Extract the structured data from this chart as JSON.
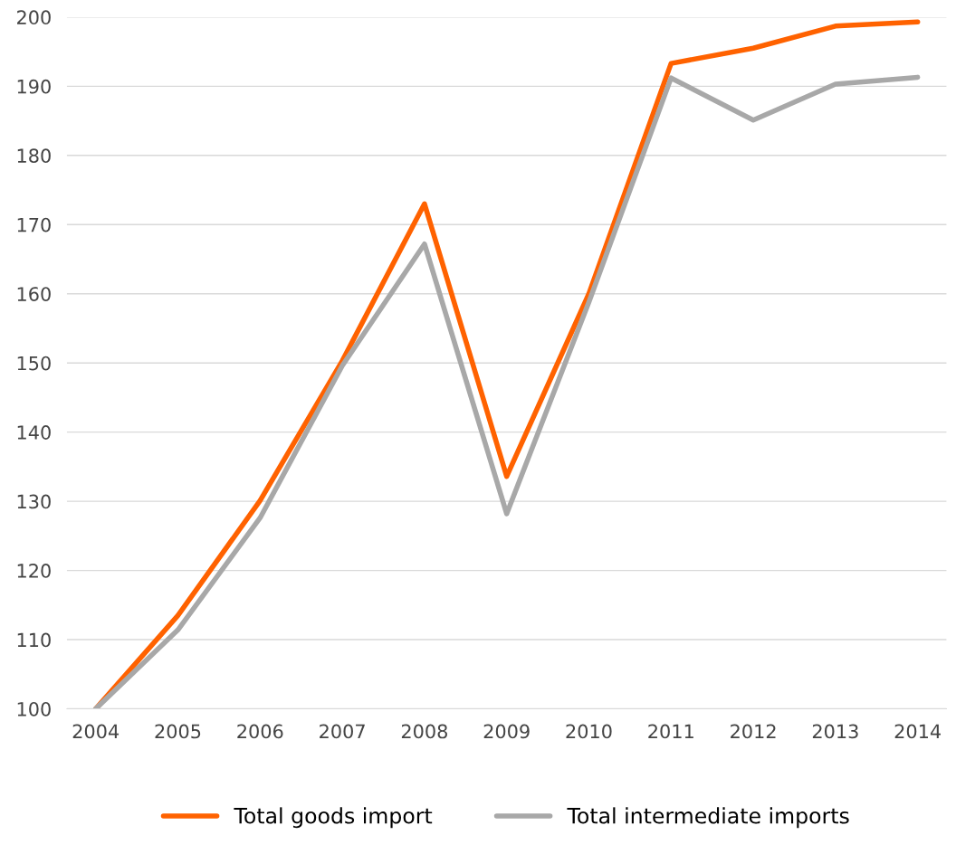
{
  "chart_data": {
    "type": "line",
    "categories": [
      "2004",
      "2005",
      "2006",
      "2007",
      "2008",
      "2009",
      "2010",
      "2011",
      "2012",
      "2013",
      "2014"
    ],
    "series": [
      {
        "name": "Total goods import",
        "color": "#ff6200",
        "values": [
          100,
          113.5,
          130.1,
          150.3,
          173.0,
          133.6,
          160.0,
          193.3,
          195.5,
          198.7,
          199.3
        ]
      },
      {
        "name": "Total intermediate imports",
        "color": "#a8a8a8",
        "values": [
          100,
          111.4,
          127.6,
          149.6,
          167.2,
          128.2,
          158.8,
          191.2,
          185.1,
          190.3,
          191.3
        ]
      }
    ],
    "ylim": [
      100,
      200
    ],
    "yticks": [
      100,
      110,
      120,
      130,
      140,
      150,
      160,
      170,
      180,
      190,
      200
    ],
    "grid": "y",
    "legend": "bottom",
    "marker": "none",
    "line_style": "solid"
  }
}
